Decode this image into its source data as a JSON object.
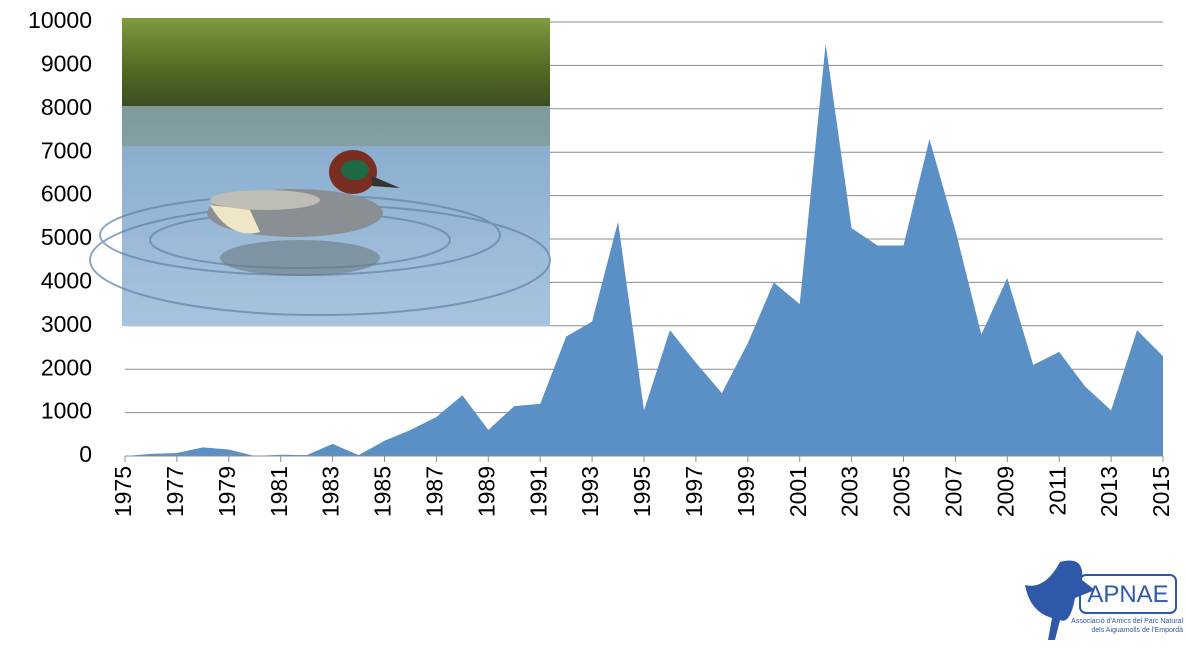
{
  "chart_data": {
    "type": "area",
    "x": [
      1975,
      1976,
      1977,
      1978,
      1979,
      1980,
      1981,
      1982,
      1983,
      1984,
      1985,
      1986,
      1987,
      1988,
      1989,
      1990,
      1991,
      1992,
      1993,
      1994,
      1995,
      1996,
      1997,
      1998,
      1999,
      2000,
      2001,
      2002,
      2003,
      2004,
      2005,
      2006,
      2007,
      2008,
      2009,
      2010,
      2011,
      2012,
      2013,
      2014,
      2015
    ],
    "values": [
      0,
      50,
      70,
      200,
      150,
      0,
      30,
      20,
      280,
      20,
      350,
      600,
      900,
      1400,
      600,
      1150,
      1200,
      2750,
      3100,
      5400,
      1050,
      2900,
      2150,
      1450,
      2600,
      4000,
      3500,
      9500,
      5250,
      4850,
      4850,
      7300,
      5200,
      2800,
      4100,
      2100,
      2400,
      1600,
      1050,
      2900,
      2300
    ],
    "color": "#5b90c6",
    "xlim": [
      1975,
      2015
    ],
    "xticks": [
      1975,
      1977,
      1979,
      1981,
      1983,
      1985,
      1987,
      1989,
      1991,
      1993,
      1995,
      1997,
      1999,
      2001,
      2003,
      2005,
      2007,
      2009,
      2011,
      2013,
      2015
    ],
    "ylim": [
      0,
      10000
    ],
    "yticks": [
      0,
      1000,
      2000,
      3000,
      4000,
      5000,
      6000,
      7000,
      8000,
      9000,
      10000
    ],
    "grid": true
  },
  "logo": {
    "name": "APNAE",
    "tagline": [
      "Associació d'Amics del Parc Natural",
      "dels Aiguamolls de l'Empordà"
    ]
  }
}
